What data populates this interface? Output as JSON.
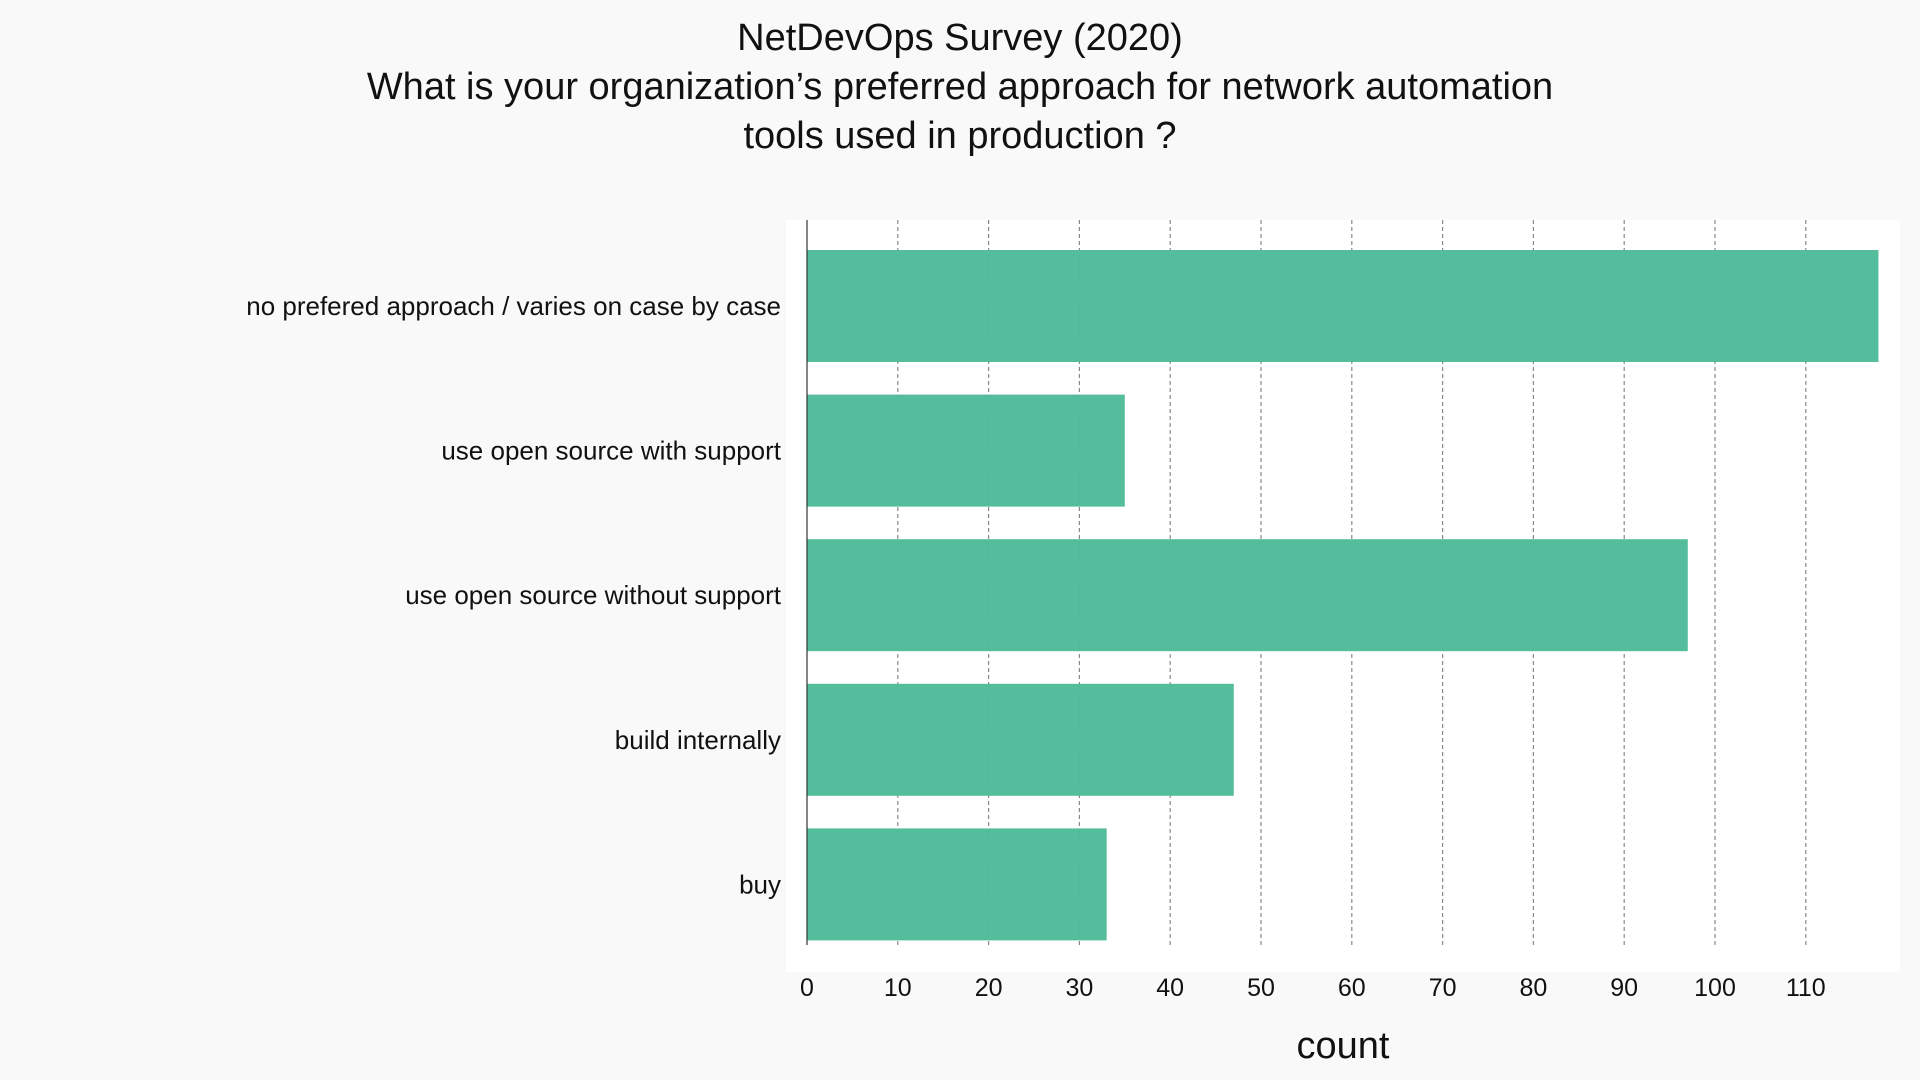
{
  "chart_data": {
    "type": "bar",
    "orientation": "horizontal",
    "title_lines": [
      "NetDevOps Survey (2020)",
      "What is your organization’s preferred approach for network automation",
      "tools used in production ?"
    ],
    "xlabel": "count",
    "ylabel": "",
    "categories": [
      "no prefered approach / varies on case by case",
      "use open source with support",
      "use open source without support",
      "build internally",
      "buy"
    ],
    "values": [
      118,
      35,
      97,
      47,
      33
    ],
    "xlim": [
      0,
      121
    ],
    "xticks": [
      0,
      10,
      20,
      30,
      40,
      50,
      60,
      70,
      80,
      90,
      100,
      110
    ],
    "grid": true,
    "legend": "none",
    "bar_color": "#4dbb99",
    "grid_color": "#888888",
    "plot_background": "#ffffff",
    "page_background": "#f9f9f9"
  }
}
